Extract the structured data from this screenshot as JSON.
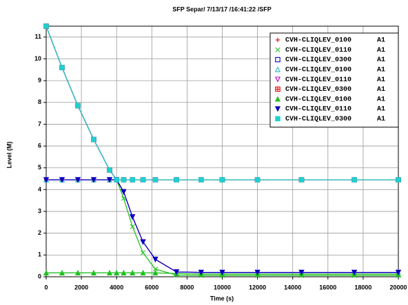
{
  "chart_data": {
    "type": "line",
    "title": "SFP Separ/ 7/13/17 /16:41:22 /SFP",
    "x_label": "Time (s)",
    "y_label": "Level (M)",
    "x": [
      0,
      900,
      1800,
      2700,
      3600,
      4000,
      4400,
      4900,
      5500,
      6200,
      7400,
      8800,
      10000,
      12000,
      14500,
      17500,
      20000
    ],
    "xlim": [
      0,
      20000
    ],
    "xticks": [
      0,
      2000,
      4000,
      6000,
      8000,
      10000,
      12000,
      14000,
      16000,
      18000,
      20000
    ],
    "ylim": [
      0,
      11.5
    ],
    "yticks": [
      0,
      1,
      2,
      3,
      4,
      5,
      6,
      7,
      8,
      9,
      10,
      11
    ],
    "grid": true,
    "legend": "upper right",
    "series": [
      {
        "name": "CVH-CLIQLEV_0100",
        "tag": "A1",
        "color": "#e00000",
        "marker": "plus",
        "values": [
          4.45,
          4.45,
          4.45,
          4.45,
          4.45,
          4.45,
          4.45,
          4.45,
          4.45,
          4.45,
          4.45,
          4.45,
          4.45,
          4.45,
          4.45,
          4.45,
          4.45
        ]
      },
      {
        "name": "CVH-CLIQLEV_0110",
        "tag": "A1",
        "color": "#20c020",
        "marker": "x",
        "values": [
          4.45,
          4.45,
          4.45,
          4.45,
          4.45,
          4.45,
          3.6,
          2.3,
          1.1,
          0.35,
          0.08,
          0.06,
          0.06,
          0.06,
          0.06,
          0.06,
          0.06
        ]
      },
      {
        "name": "CVH-CLIQLEV_0300",
        "tag": "A1",
        "color": "#0000c0",
        "marker": "square",
        "values": [
          11.5,
          9.6,
          7.85,
          6.3,
          4.9,
          4.45,
          4.45,
          4.45,
          4.45,
          4.45,
          4.45,
          4.45,
          4.45,
          4.45,
          4.45,
          4.45,
          4.45
        ]
      },
      {
        "name": "CVH-CLIQLEV_0100",
        "tag": "A1",
        "color": "#20c0c0",
        "marker": "triangle-up",
        "values": [
          4.45,
          4.45,
          4.45,
          4.45,
          4.45,
          4.45,
          4.45,
          4.45,
          4.45,
          4.45,
          4.45,
          4.45,
          4.45,
          4.45,
          4.45,
          4.45,
          4.45
        ]
      },
      {
        "name": "CVH-CLIQLEV_0110",
        "tag": "A1",
        "color": "#c000c0",
        "marker": "triangle-down",
        "values": [
          4.45,
          4.45,
          4.45,
          4.45,
          4.45,
          4.45,
          3.9,
          2.75,
          1.6,
          0.8,
          0.22,
          0.2,
          0.2,
          0.2,
          0.2,
          0.2,
          0.2
        ]
      },
      {
        "name": "CVH-CLIQLEV_0300",
        "tag": "A1",
        "color": "#e00000",
        "marker": "square-plus",
        "values": [
          11.5,
          9.6,
          7.85,
          6.3,
          4.9,
          4.45,
          4.45,
          4.45,
          4.45,
          4.45,
          4.45,
          4.45,
          4.45,
          4.45,
          4.45,
          4.45,
          4.45
        ]
      },
      {
        "name": "CVH-CLIQLEV_0100",
        "tag": "A1",
        "color": "#20c020",
        "marker": "triangle-up-filled",
        "values": [
          0.18,
          0.18,
          0.18,
          0.18,
          0.18,
          0.18,
          0.18,
          0.18,
          0.18,
          0.18,
          0.15,
          0.12,
          0.12,
          0.12,
          0.12,
          0.12,
          0.12
        ]
      },
      {
        "name": "CVH-CLIQLEV_0110",
        "tag": "A1",
        "color": "#0000c0",
        "marker": "triangle-down-filled",
        "values": [
          4.45,
          4.45,
          4.45,
          4.45,
          4.45,
          4.45,
          3.9,
          2.75,
          1.6,
          0.8,
          0.22,
          0.2,
          0.2,
          0.2,
          0.2,
          0.2,
          0.2
        ]
      },
      {
        "name": "CVH-CLIQLEV_0300",
        "tag": "A1",
        "color": "#20d0d0",
        "marker": "square-filled",
        "values": [
          11.5,
          9.6,
          7.85,
          6.3,
          4.9,
          4.45,
          4.45,
          4.45,
          4.45,
          4.45,
          4.45,
          4.45,
          4.45,
          4.45,
          4.45,
          4.45,
          4.45
        ]
      }
    ]
  }
}
